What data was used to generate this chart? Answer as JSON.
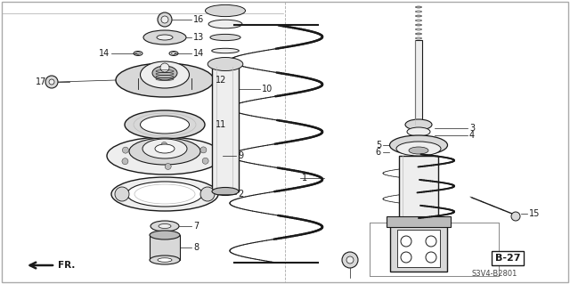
{
  "bg_color": "#ffffff",
  "line_color": "#1a1a1a",
  "border_color": "#888888",
  "gray_fill": "#d8d8d8",
  "light_gray": "#eeeeee",
  "mid_gray": "#bbbbbb",
  "page_ref": "B-27",
  "part_num": "S3V4-B2801"
}
